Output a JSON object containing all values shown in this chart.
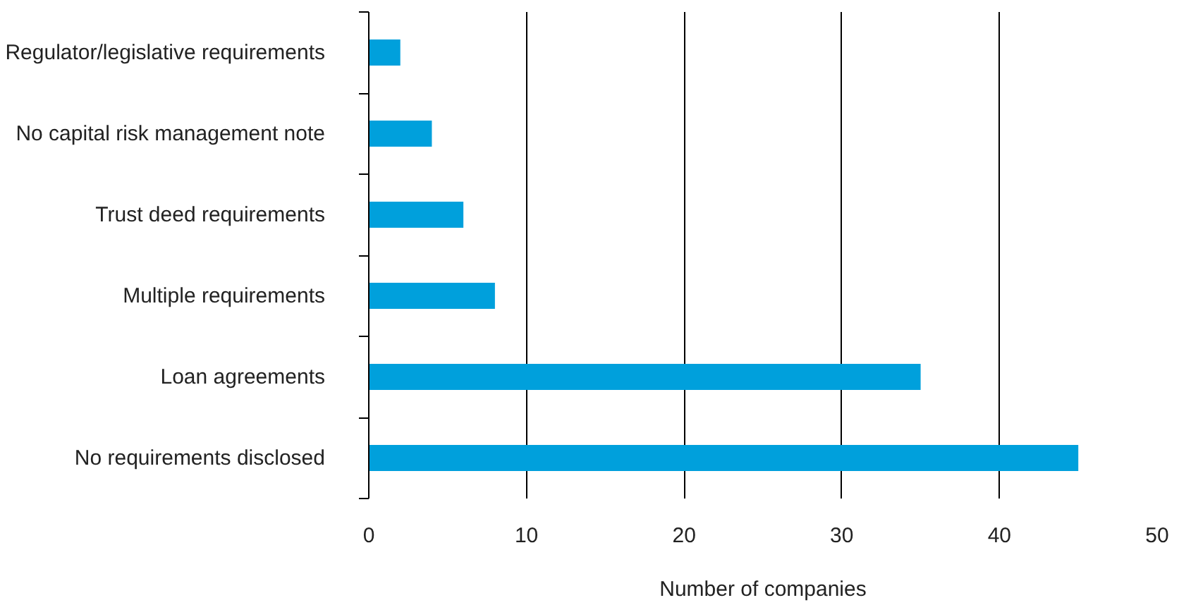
{
  "chart_data": {
    "type": "bar",
    "orientation": "horizontal",
    "xlabel": "Number of companies",
    "categories": [
      "Regulator/legislative requirements",
      "No capital risk management note",
      "Trust deed requirements",
      "Multiple requirements",
      "Loan agreements",
      "No requirements disclosed"
    ],
    "values": [
      2,
      4,
      6,
      8,
      35,
      45
    ],
    "color": "#00a0dc",
    "xlim": [
      0,
      50
    ],
    "xticks": [
      0,
      10,
      20,
      30,
      40,
      50
    ],
    "grid": "x"
  }
}
